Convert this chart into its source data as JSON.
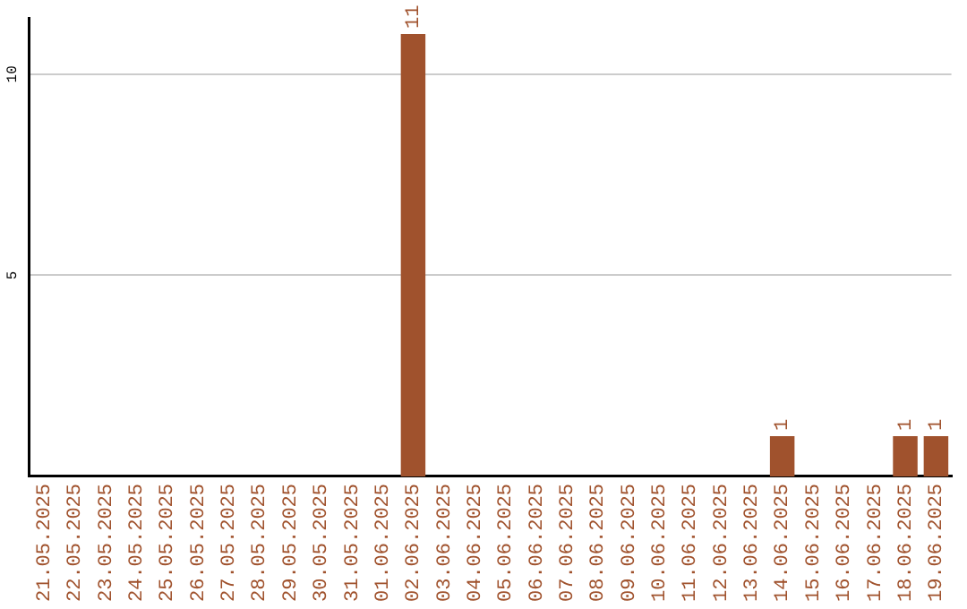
{
  "chart_data": {
    "type": "bar",
    "categories": [
      "21.05.2025",
      "22.05.2025",
      "23.05.2025",
      "24.05.2025",
      "25.05.2025",
      "26.05.2025",
      "27.05.2025",
      "28.05.2025",
      "29.05.2025",
      "30.05.2025",
      "31.05.2025",
      "01.06.2025",
      "02.06.2025",
      "03.06.2025",
      "04.06.2025",
      "05.06.2025",
      "06.06.2025",
      "07.06.2025",
      "08.06.2025",
      "09.06.2025",
      "10.06.2025",
      "11.06.2025",
      "12.06.2025",
      "13.06.2025",
      "14.06.2025",
      "15.06.2025",
      "16.06.2025",
      "17.06.2025",
      "18.06.2025",
      "19.06.2025"
    ],
    "values": [
      0,
      0,
      0,
      0,
      0,
      0,
      0,
      0,
      0,
      0,
      0,
      0,
      11,
      0,
      0,
      0,
      0,
      0,
      0,
      0,
      0,
      0,
      0,
      0,
      1,
      0,
      0,
      0,
      1,
      1
    ],
    "value_labels": [
      null,
      null,
      null,
      null,
      null,
      null,
      null,
      null,
      null,
      null,
      null,
      null,
      "11",
      null,
      null,
      null,
      null,
      null,
      null,
      null,
      null,
      null,
      null,
      null,
      "1",
      null,
      null,
      null,
      "1",
      "1"
    ],
    "color": "#a0522d",
    "ylim": [
      0,
      11.4
    ],
    "yticks": [
      5,
      10
    ],
    "grid": "y",
    "legend": false
  }
}
